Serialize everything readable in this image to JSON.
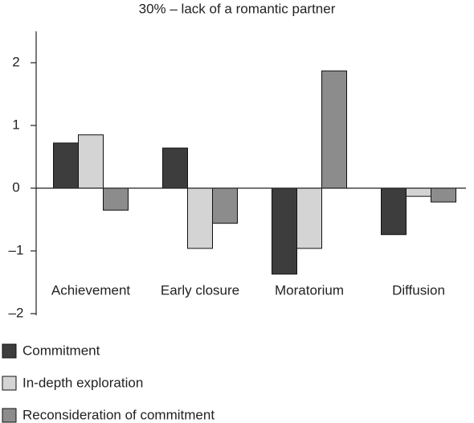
{
  "chart_data": {
    "type": "bar",
    "title": "30% – lack of a romantic partner",
    "categories": [
      "Achievement",
      "Early closure",
      "Moratorium",
      "Diffusion"
    ],
    "series": [
      {
        "name": "Commitment",
        "color": "#3d3d3d",
        "values": [
          0.72,
          0.64,
          -1.37,
          -0.74
        ]
      },
      {
        "name": "In-depth exploration",
        "color": "#d4d4d4",
        "values": [
          0.85,
          -0.96,
          -0.96,
          -0.13
        ]
      },
      {
        "name": "Reconsideration of commitment",
        "color": "#8c8c8c",
        "values": [
          -0.35,
          -0.56,
          1.87,
          -0.22
        ]
      }
    ],
    "ylim": [
      -2,
      2.5
    ],
    "yticks": [
      {
        "value": -2,
        "label": "–2"
      },
      {
        "value": -1,
        "label": "–1"
      },
      0,
      1,
      2
    ],
    "legend": "bottom-left"
  }
}
